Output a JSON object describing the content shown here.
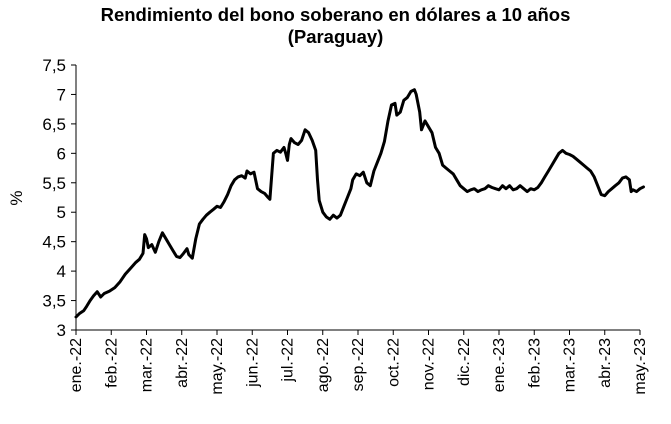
{
  "chart_data": {
    "type": "line",
    "title": "Rendimiento del bono soberano en dólares a 10 años",
    "subtitle": "(Paraguay)",
    "ylabel": "%",
    "xlabel": "",
    "ylim": [
      3,
      7.5
    ],
    "yticks": [
      "3",
      "3,5",
      "4",
      "4,5",
      "5",
      "5,5",
      "6",
      "6,5",
      "7",
      "7,5"
    ],
    "xticks": [
      "ene.-22",
      "feb.-22",
      "mar.-22",
      "abr.-22",
      "may.-22",
      "jun.-22",
      "jul.-22",
      "ago.-22",
      "sep.-22",
      "oct.-22",
      "nov.-22",
      "dic.-22",
      "ene.-23",
      "feb.-23",
      "mar.-23",
      "abr.-23",
      "may.-23"
    ],
    "grid": false,
    "legend": "none",
    "line_color": "#000000",
    "series": [
      {
        "x_unit": "month index (0 = ene.-22)",
        "points": [
          [
            0.0,
            3.22
          ],
          [
            0.1,
            3.28
          ],
          [
            0.22,
            3.33
          ],
          [
            0.3,
            3.4
          ],
          [
            0.4,
            3.5
          ],
          [
            0.5,
            3.58
          ],
          [
            0.6,
            3.65
          ],
          [
            0.7,
            3.56
          ],
          [
            0.8,
            3.62
          ],
          [
            0.95,
            3.66
          ],
          [
            1.1,
            3.72
          ],
          [
            1.25,
            3.82
          ],
          [
            1.4,
            3.95
          ],
          [
            1.55,
            4.05
          ],
          [
            1.7,
            4.15
          ],
          [
            1.8,
            4.2
          ],
          [
            1.9,
            4.3
          ],
          [
            1.95,
            4.62
          ],
          [
            2.0,
            4.55
          ],
          [
            2.05,
            4.4
          ],
          [
            2.15,
            4.45
          ],
          [
            2.25,
            4.32
          ],
          [
            2.35,
            4.5
          ],
          [
            2.45,
            4.65
          ],
          [
            2.55,
            4.55
          ],
          [
            2.65,
            4.45
          ],
          [
            2.75,
            4.35
          ],
          [
            2.85,
            4.25
          ],
          [
            2.95,
            4.23
          ],
          [
            3.05,
            4.3
          ],
          [
            3.15,
            4.38
          ],
          [
            3.2,
            4.28
          ],
          [
            3.3,
            4.22
          ],
          [
            3.4,
            4.55
          ],
          [
            3.5,
            4.8
          ],
          [
            3.6,
            4.88
          ],
          [
            3.7,
            4.95
          ],
          [
            3.8,
            5.0
          ],
          [
            3.9,
            5.05
          ],
          [
            4.0,
            5.1
          ],
          [
            4.1,
            5.08
          ],
          [
            4.2,
            5.18
          ],
          [
            4.3,
            5.3
          ],
          [
            4.4,
            5.45
          ],
          [
            4.5,
            5.55
          ],
          [
            4.6,
            5.6
          ],
          [
            4.7,
            5.62
          ],
          [
            4.8,
            5.58
          ],
          [
            4.85,
            5.7
          ],
          [
            4.95,
            5.65
          ],
          [
            5.05,
            5.68
          ],
          [
            5.15,
            5.4
          ],
          [
            5.25,
            5.35
          ],
          [
            5.35,
            5.32
          ],
          [
            5.45,
            5.25
          ],
          [
            5.5,
            5.22
          ],
          [
            5.55,
            5.6
          ],
          [
            5.6,
            6.0
          ],
          [
            5.7,
            6.05
          ],
          [
            5.8,
            6.02
          ],
          [
            5.9,
            6.1
          ],
          [
            5.95,
            6.0
          ],
          [
            6.0,
            5.88
          ],
          [
            6.05,
            6.15
          ],
          [
            6.1,
            6.25
          ],
          [
            6.2,
            6.18
          ],
          [
            6.3,
            6.15
          ],
          [
            6.4,
            6.22
          ],
          [
            6.5,
            6.4
          ],
          [
            6.6,
            6.35
          ],
          [
            6.7,
            6.22
          ],
          [
            6.8,
            6.05
          ],
          [
            6.85,
            5.55
          ],
          [
            6.9,
            5.2
          ],
          [
            7.0,
            5.0
          ],
          [
            7.1,
            4.92
          ],
          [
            7.2,
            4.88
          ],
          [
            7.3,
            4.95
          ],
          [
            7.4,
            4.9
          ],
          [
            7.5,
            4.95
          ],
          [
            7.6,
            5.1
          ],
          [
            7.7,
            5.25
          ],
          [
            7.8,
            5.4
          ],
          [
            7.85,
            5.55
          ],
          [
            7.95,
            5.65
          ],
          [
            8.05,
            5.62
          ],
          [
            8.15,
            5.68
          ],
          [
            8.25,
            5.5
          ],
          [
            8.35,
            5.45
          ],
          [
            8.45,
            5.7
          ],
          [
            8.55,
            5.85
          ],
          [
            8.65,
            6.0
          ],
          [
            8.75,
            6.2
          ],
          [
            8.85,
            6.55
          ],
          [
            8.95,
            6.82
          ],
          [
            9.05,
            6.85
          ],
          [
            9.1,
            6.65
          ],
          [
            9.2,
            6.7
          ],
          [
            9.3,
            6.9
          ],
          [
            9.4,
            6.95
          ],
          [
            9.5,
            7.05
          ],
          [
            9.6,
            7.08
          ],
          [
            9.65,
            7.0
          ],
          [
            9.75,
            6.7
          ],
          [
            9.8,
            6.4
          ],
          [
            9.9,
            6.55
          ],
          [
            10.0,
            6.45
          ],
          [
            10.1,
            6.35
          ],
          [
            10.2,
            6.1
          ],
          [
            10.3,
            6.0
          ],
          [
            10.4,
            5.8
          ],
          [
            10.5,
            5.75
          ],
          [
            10.6,
            5.7
          ],
          [
            10.7,
            5.65
          ],
          [
            10.8,
            5.55
          ],
          [
            10.9,
            5.45
          ],
          [
            11.0,
            5.4
          ],
          [
            11.1,
            5.35
          ],
          [
            11.2,
            5.38
          ],
          [
            11.3,
            5.4
          ],
          [
            11.4,
            5.35
          ],
          [
            11.5,
            5.38
          ],
          [
            11.6,
            5.4
          ],
          [
            11.7,
            5.45
          ],
          [
            11.8,
            5.42
          ],
          [
            11.9,
            5.4
          ],
          [
            12.0,
            5.38
          ],
          [
            12.1,
            5.45
          ],
          [
            12.2,
            5.4
          ],
          [
            12.3,
            5.45
          ],
          [
            12.4,
            5.38
          ],
          [
            12.5,
            5.4
          ],
          [
            12.6,
            5.45
          ],
          [
            12.7,
            5.4
          ],
          [
            12.8,
            5.35
          ],
          [
            12.9,
            5.4
          ],
          [
            13.0,
            5.38
          ],
          [
            13.1,
            5.42
          ],
          [
            13.2,
            5.5
          ],
          [
            13.3,
            5.6
          ],
          [
            13.4,
            5.7
          ],
          [
            13.5,
            5.8
          ],
          [
            13.6,
            5.9
          ],
          [
            13.7,
            6.0
          ],
          [
            13.8,
            6.05
          ],
          [
            13.9,
            6.0
          ],
          [
            14.0,
            5.98
          ],
          [
            14.1,
            5.95
          ],
          [
            14.2,
            5.9
          ],
          [
            14.3,
            5.85
          ],
          [
            14.4,
            5.8
          ],
          [
            14.5,
            5.75
          ],
          [
            14.6,
            5.7
          ],
          [
            14.7,
            5.6
          ],
          [
            14.8,
            5.45
          ],
          [
            14.9,
            5.3
          ],
          [
            15.0,
            5.28
          ],
          [
            15.1,
            5.35
          ],
          [
            15.2,
            5.4
          ],
          [
            15.3,
            5.45
          ],
          [
            15.4,
            5.5
          ],
          [
            15.5,
            5.58
          ],
          [
            15.6,
            5.6
          ],
          [
            15.7,
            5.55
          ],
          [
            15.75,
            5.35
          ],
          [
            15.8,
            5.38
          ],
          [
            15.9,
            5.35
          ],
          [
            16.0,
            5.4
          ],
          [
            16.1,
            5.43
          ]
        ]
      }
    ]
  }
}
